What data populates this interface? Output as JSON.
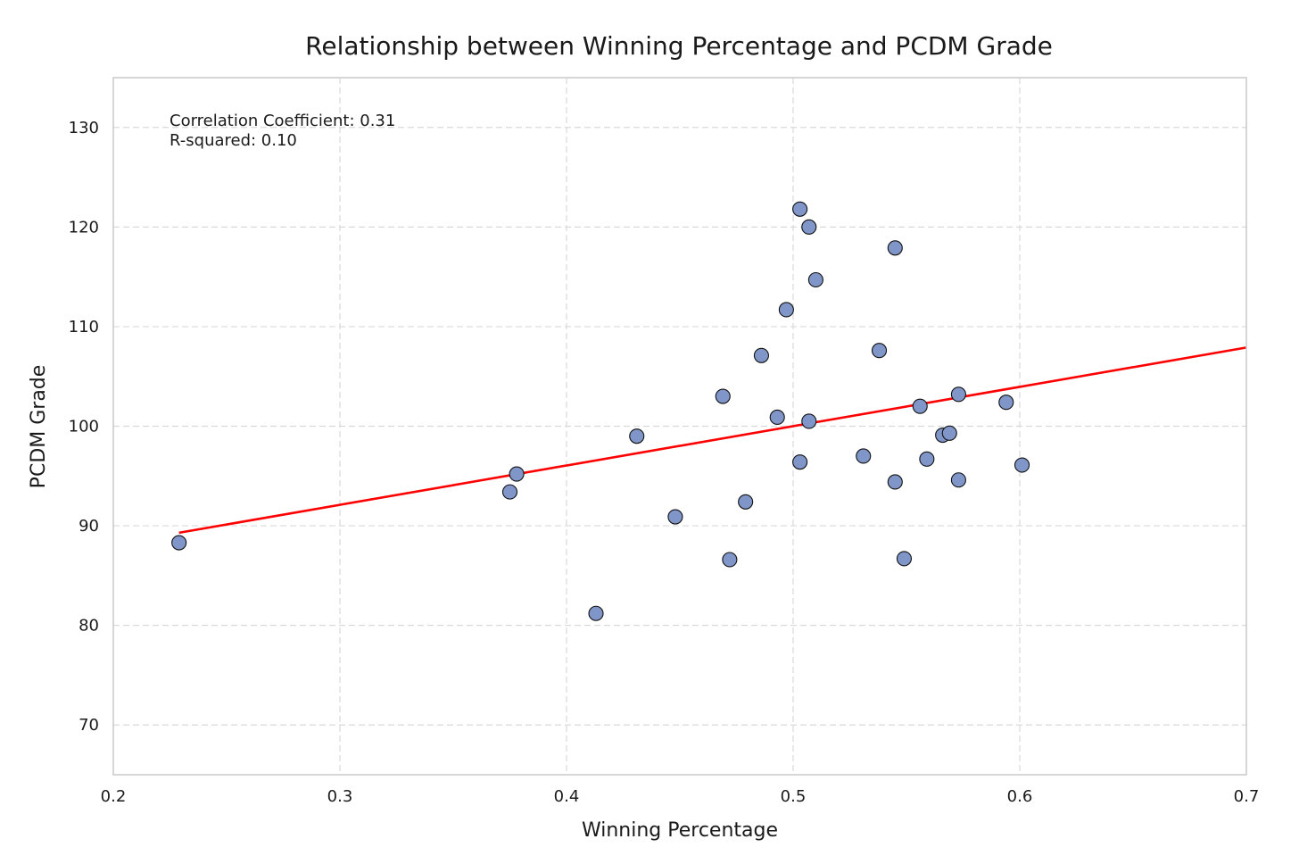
{
  "chart_data": {
    "type": "scatter",
    "title": "Relationship between Winning Percentage and PCDM Grade",
    "xlabel": "Winning Percentage",
    "ylabel": "PCDM Grade",
    "xlim": [
      0.2,
      0.7
    ],
    "ylim": [
      65,
      135
    ],
    "xticks": [
      0.2,
      0.3,
      0.4,
      0.5,
      0.6,
      0.7
    ],
    "xtick_labels": [
      "0.2",
      "0.3",
      "0.4",
      "0.5",
      "0.6",
      "0.7"
    ],
    "yticks": [
      70,
      80,
      90,
      100,
      110,
      120,
      130
    ],
    "ytick_labels": [
      "70",
      "80",
      "90",
      "100",
      "110",
      "120",
      "130"
    ],
    "grid": true,
    "points": [
      {
        "x": 0.229,
        "y": 88.3
      },
      {
        "x": 0.375,
        "y": 93.4
      },
      {
        "x": 0.378,
        "y": 95.2
      },
      {
        "x": 0.413,
        "y": 81.2
      },
      {
        "x": 0.431,
        "y": 99.0
      },
      {
        "x": 0.448,
        "y": 90.9
      },
      {
        "x": 0.469,
        "y": 103.0
      },
      {
        "x": 0.472,
        "y": 86.6
      },
      {
        "x": 0.479,
        "y": 92.4
      },
      {
        "x": 0.486,
        "y": 107.1
      },
      {
        "x": 0.493,
        "y": 100.9
      },
      {
        "x": 0.497,
        "y": 111.7
      },
      {
        "x": 0.503,
        "y": 121.8
      },
      {
        "x": 0.503,
        "y": 96.4
      },
      {
        "x": 0.507,
        "y": 120.0
      },
      {
        "x": 0.507,
        "y": 100.5
      },
      {
        "x": 0.51,
        "y": 114.7
      },
      {
        "x": 0.531,
        "y": 97.0
      },
      {
        "x": 0.538,
        "y": 107.6
      },
      {
        "x": 0.545,
        "y": 117.9
      },
      {
        "x": 0.545,
        "y": 94.4
      },
      {
        "x": 0.549,
        "y": 86.7
      },
      {
        "x": 0.556,
        "y": 102.0
      },
      {
        "x": 0.559,
        "y": 96.7
      },
      {
        "x": 0.566,
        "y": 99.1
      },
      {
        "x": 0.569,
        "y": 99.3
      },
      {
        "x": 0.573,
        "y": 103.2
      },
      {
        "x": 0.573,
        "y": 94.6
      },
      {
        "x": 0.594,
        "y": 102.4
      },
      {
        "x": 0.601,
        "y": 96.1
      }
    ],
    "regression": {
      "x_start": 0.229,
      "y_start": 89.3,
      "x_end": 0.7,
      "y_end": 107.9
    },
    "annotations": [
      "Correlation Coefficient: 0.31",
      "R-squared: 0.10"
    ],
    "colors": {
      "points": "#8096c8",
      "point_edge": "#111111",
      "regression": "#ff0000",
      "grid": "#d9d9d9",
      "frame": "#c8c8c8"
    }
  }
}
